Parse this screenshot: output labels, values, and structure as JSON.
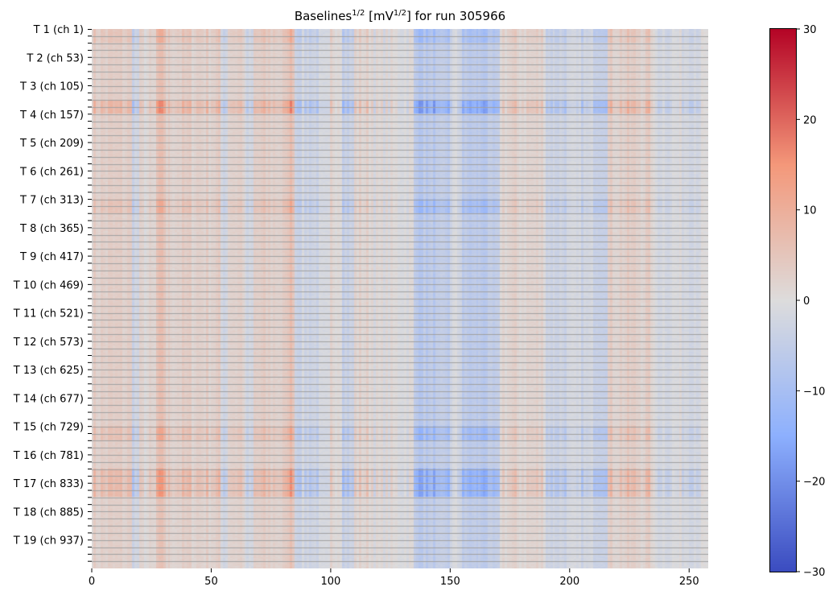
{
  "chart_data": {
    "type": "heatmap",
    "title": {
      "base": "Baselines",
      "exp1": "1/2",
      "mid": " [mV",
      "exp2": "1/2",
      "end": "] for run 305966"
    },
    "x_ticks": [
      0,
      50,
      100,
      150,
      200,
      250
    ],
    "x_range": [
      0,
      258
    ],
    "y_ticks": [
      "T 1 (ch 1)",
      "T 2 (ch 53)",
      "T 3 (ch 105)",
      "T 4 (ch 157)",
      "T 5 (ch 209)",
      "T 6 (ch 261)",
      "T 7 (ch 313)",
      "T 8 (ch 365)",
      "T 9 (ch 417)",
      "T 10 (ch 469)",
      "T 11 (ch 521)",
      "T 12 (ch 573)",
      "T 13 (ch 625)",
      "T 14 (ch 677)",
      "T 15 (ch 729)",
      "T 16 (ch 781)",
      "T 17 (ch 833)",
      "T 18 (ch 885)",
      "T 19 (ch 937)"
    ],
    "row_groups": 76,
    "channels_per_group": 13,
    "colorbar": {
      "min": -30,
      "max": 30,
      "ticks": [
        30,
        20,
        10,
        0,
        -10,
        -20,
        -30
      ],
      "colormap": "coolwarm"
    },
    "column_profile_segments": [
      {
        "from": 0,
        "to": 17,
        "value": 3
      },
      {
        "from": 17,
        "to": 20,
        "value": -3
      },
      {
        "from": 20,
        "to": 27,
        "value": 1
      },
      {
        "from": 27,
        "to": 31,
        "value": 6
      },
      {
        "from": 31,
        "to": 54,
        "value": 3
      },
      {
        "from": 54,
        "to": 57,
        "value": -2
      },
      {
        "from": 57,
        "to": 64,
        "value": 3
      },
      {
        "from": 64,
        "to": 68,
        "value": -3
      },
      {
        "from": 68,
        "to": 82,
        "value": 3
      },
      {
        "from": 82,
        "to": 85,
        "value": 7
      },
      {
        "from": 85,
        "to": 100,
        "value": -3
      },
      {
        "from": 100,
        "to": 105,
        "value": 2
      },
      {
        "from": 105,
        "to": 110,
        "value": -4
      },
      {
        "from": 110,
        "to": 118,
        "value": 2
      },
      {
        "from": 118,
        "to": 135,
        "value": 0
      },
      {
        "from": 135,
        "to": 150,
        "value": -7
      },
      {
        "from": 150,
        "to": 155,
        "value": -2
      },
      {
        "from": 155,
        "to": 171,
        "value": -7
      },
      {
        "from": 171,
        "to": 190,
        "value": 2
      },
      {
        "from": 190,
        "to": 216,
        "value": -3
      },
      {
        "from": 216,
        "to": 235,
        "value": 3
      },
      {
        "from": 235,
        "to": 258,
        "value": -1
      }
    ],
    "row_amplitude_segments": [
      {
        "from": 0,
        "to": 2,
        "value": 1.4
      },
      {
        "from": 2,
        "to": 10,
        "value": 0.9
      },
      {
        "from": 10,
        "to": 12,
        "value": 2.2
      },
      {
        "from": 12,
        "to": 24,
        "value": 0.9
      },
      {
        "from": 24,
        "to": 26,
        "value": 1.5
      },
      {
        "from": 26,
        "to": 56,
        "value": 0.9
      },
      {
        "from": 56,
        "to": 58,
        "value": 1.6
      },
      {
        "from": 58,
        "to": 62,
        "value": 0.9
      },
      {
        "from": 62,
        "to": 66,
        "value": 2.0
      },
      {
        "from": 66,
        "to": 76,
        "value": 0.8
      }
    ]
  }
}
